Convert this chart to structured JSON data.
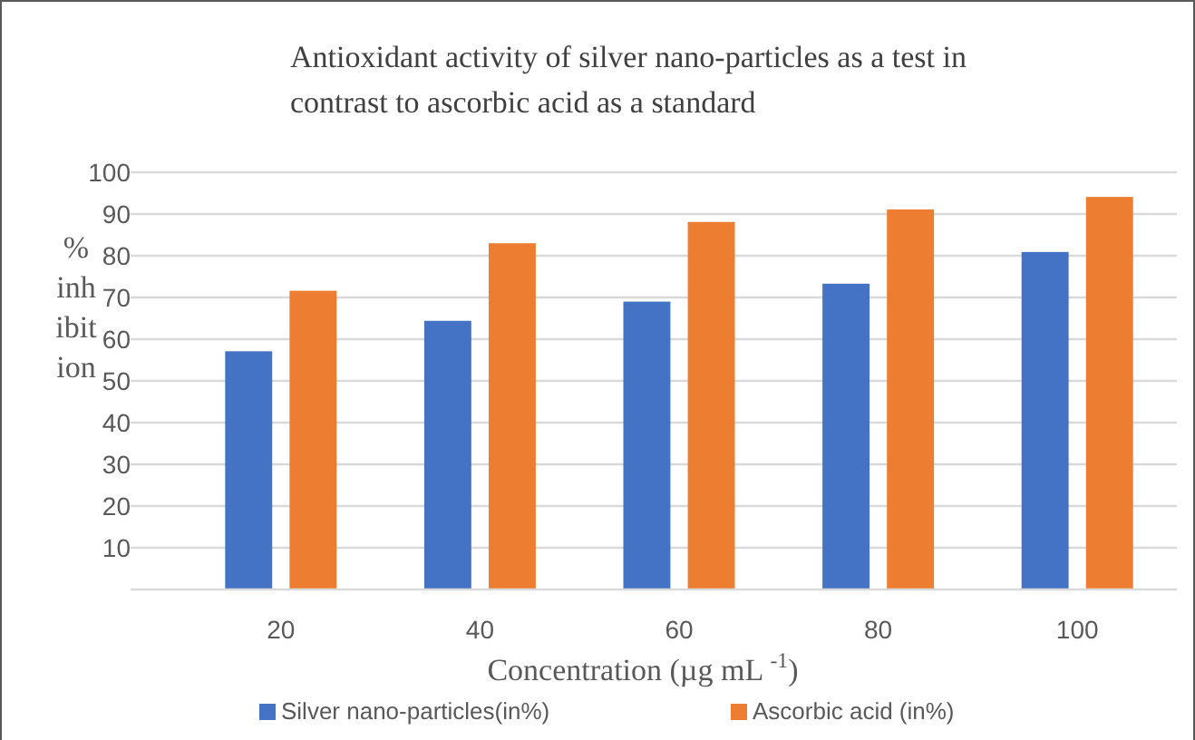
{
  "chart_data": {
    "type": "bar",
    "title": "Antioxidant activity of silver nano-particles as a test in contrast to ascorbic acid as a standard",
    "xlabel": "Concentration (µg mL $^{-1}$)",
    "ylabel": "% inhibition",
    "categories": [
      "20",
      "40",
      "60",
      "80",
      "100"
    ],
    "series": [
      {
        "name": "Silver nano-particles(in%)",
        "color": "#4472c4",
        "values": [
          57.1,
          64.4,
          69.0,
          73.3,
          80.9
        ]
      },
      {
        "name": "Ascorbic acid (in%)",
        "color": "#ed7d31",
        "values": [
          71.6,
          83.0,
          88.1,
          91.1,
          94.1
        ]
      }
    ],
    "ylim": [
      0,
      100
    ],
    "yticks": [
      {
        "value": 0,
        "label": null
      },
      10,
      20,
      30,
      40,
      50,
      60,
      70,
      80,
      90,
      100
    ],
    "grid": "y",
    "legend": "bottom"
  }
}
